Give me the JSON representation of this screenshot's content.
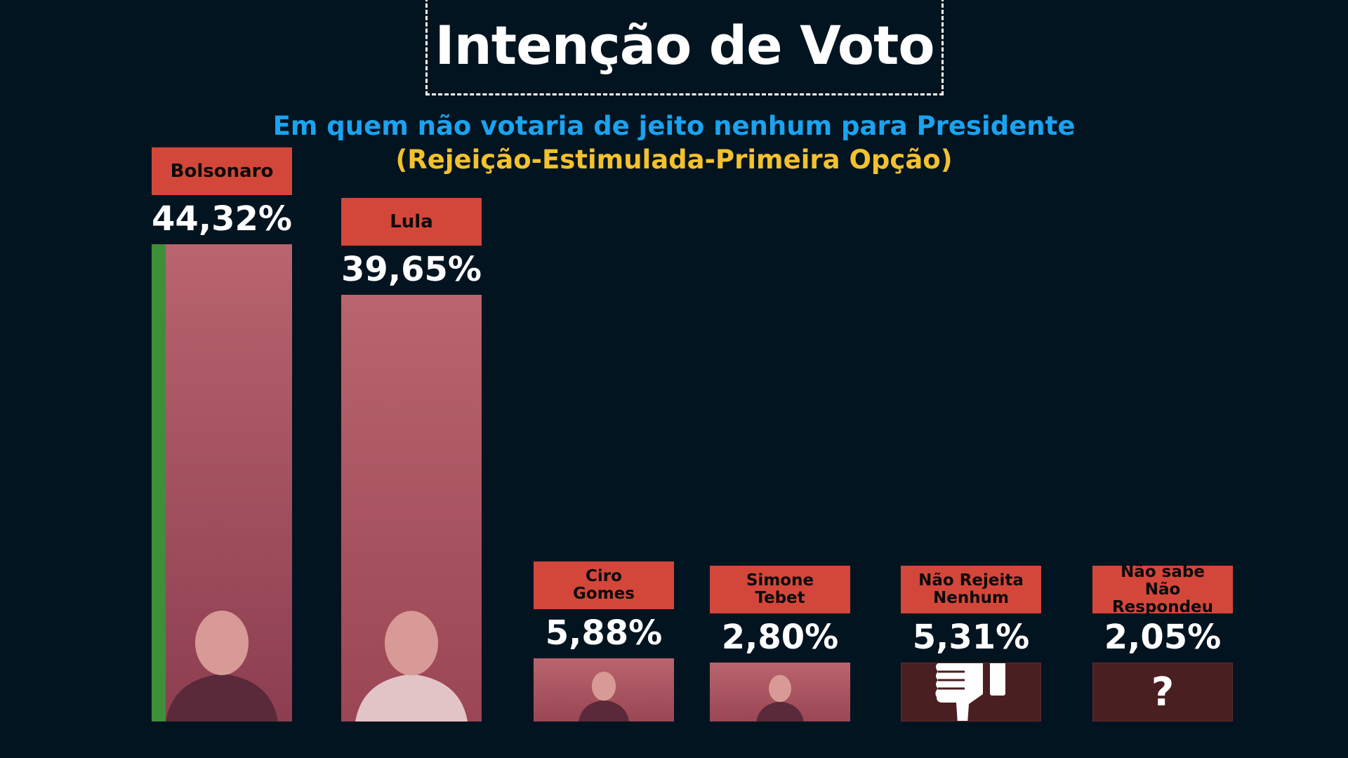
{
  "header": {
    "title": "Intenção de Voto",
    "subtitle_line1": "Em quem não votaria de jeito nenhum para Presidente",
    "subtitle_line2": "(Rejeição-Estimulada-Primeira  Opção)"
  },
  "colors": {
    "background": "#021420",
    "label_box": "#d3473a",
    "subtitle_blue": "#1aa3f0",
    "subtitle_yellow": "#f2c12e",
    "bar_overlay": "#b9646e",
    "icon_bar": "#4a1f22"
  },
  "chart_data": {
    "type": "bar",
    "title": "Intenção de Voto",
    "subtitle": "Em quem não votaria de jeito nenhum para Presidente (Rejeição-Estimulada-Primeira  Opção)",
    "categories": [
      "Bolsonaro",
      "Lula",
      "Ciro\nGomes",
      "Simone\nTebet",
      "Não Rejeita\nNenhum",
      "Não sabe\nNão Respondeu"
    ],
    "values": [
      44.32,
      39.65,
      5.88,
      2.8,
      5.31,
      2.05
    ],
    "value_labels": [
      "44,32%",
      "39,65%",
      "5,88%",
      "2,80%",
      "5,31%",
      "2,05%"
    ],
    "bar_fill": [
      "photo",
      "photo",
      "photo",
      "photo",
      "thumbs-down-icon",
      "question-mark-icon"
    ],
    "icon_glyph": "?",
    "ylim": [
      0,
      44.32
    ],
    "grid": false,
    "legend": "none",
    "xlabel": "",
    "ylabel": ""
  }
}
